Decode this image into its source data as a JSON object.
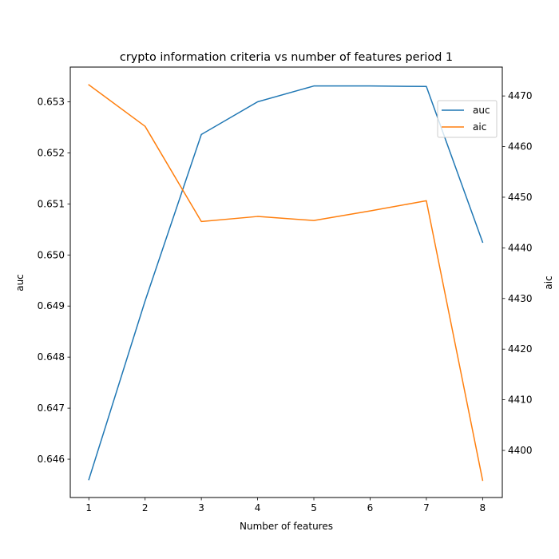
{
  "chart_data": {
    "type": "line",
    "title": "crypto information criteria vs number of features period 1",
    "xlabel": "Number of features",
    "ylabel_left": "auc",
    "ylabel_right": "aic",
    "x": [
      1,
      2,
      3,
      4,
      5,
      6,
      7,
      8
    ],
    "x_ticks": [
      "1",
      "2",
      "3",
      "4",
      "5",
      "6",
      "7",
      "8"
    ],
    "xlim": [
      0.67,
      8.35
    ],
    "ylim_left": [
      0.64525,
      0.65368
    ],
    "ylim_right": [
      4390.7,
      4475.7
    ],
    "y_ticks_left": [
      "0.646",
      "0.647",
      "0.648",
      "0.649",
      "0.650",
      "0.651",
      "0.652",
      "0.653"
    ],
    "y_ticks_right": [
      "4400",
      "4410",
      "4420",
      "4430",
      "4440",
      "4450",
      "4460",
      "4470"
    ],
    "series": [
      {
        "name": "auc",
        "axis": "left",
        "color": "#1f77b4",
        "values": [
          0.6456,
          0.6491,
          0.65236,
          0.653,
          0.65331,
          0.65331,
          0.6533,
          0.65025
        ]
      },
      {
        "name": "aic",
        "axis": "right",
        "color": "#ff7f0e",
        "values": [
          4472.2,
          4464.0,
          4445.2,
          4446.2,
          4445.4,
          4447.3,
          4449.3,
          4394.1
        ]
      }
    ],
    "legend": {
      "position": "upper-right",
      "entries": [
        "auc",
        "aic"
      ]
    },
    "grid": false
  }
}
